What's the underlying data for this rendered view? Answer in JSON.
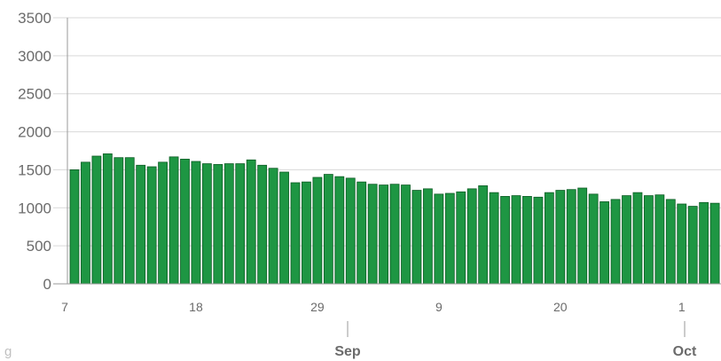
{
  "chart_data": {
    "type": "bar",
    "title": "",
    "xlabel": "",
    "ylabel": "",
    "ylim": [
      0,
      3500
    ],
    "yticks": [
      "0",
      "500",
      "1000",
      "1500",
      "2000",
      "2500",
      "3000",
      "3500"
    ],
    "grid": true,
    "bar_color": "#1e9643",
    "bar_stroke": "#0d5c25",
    "x_day_ticks": [
      {
        "index": 0,
        "label": "7"
      },
      {
        "index": 11,
        "label": "18"
      },
      {
        "index": 22,
        "label": "29"
      },
      {
        "index": 33,
        "label": "9"
      },
      {
        "index": 44,
        "label": "20"
      },
      {
        "index": 55,
        "label": "1"
      }
    ],
    "x_month_ticks": [
      {
        "index": 25,
        "label": "Sep"
      },
      {
        "index": 55,
        "label": "Oct"
      }
    ],
    "corner_label": "g",
    "values": [
      1500,
      1600,
      1680,
      1710,
      1660,
      1660,
      1560,
      1540,
      1600,
      1670,
      1640,
      1610,
      1580,
      1570,
      1580,
      1580,
      1630,
      1560,
      1520,
      1470,
      1330,
      1340,
      1400,
      1440,
      1410,
      1390,
      1340,
      1310,
      1300,
      1310,
      1300,
      1230,
      1250,
      1180,
      1190,
      1210,
      1250,
      1290,
      1200,
      1150,
      1160,
      1150,
      1140,
      1200,
      1230,
      1240,
      1260,
      1180,
      1080,
      1110,
      1160,
      1200,
      1160,
      1170,
      1110,
      1050,
      1020,
      1070,
      1060
    ]
  }
}
